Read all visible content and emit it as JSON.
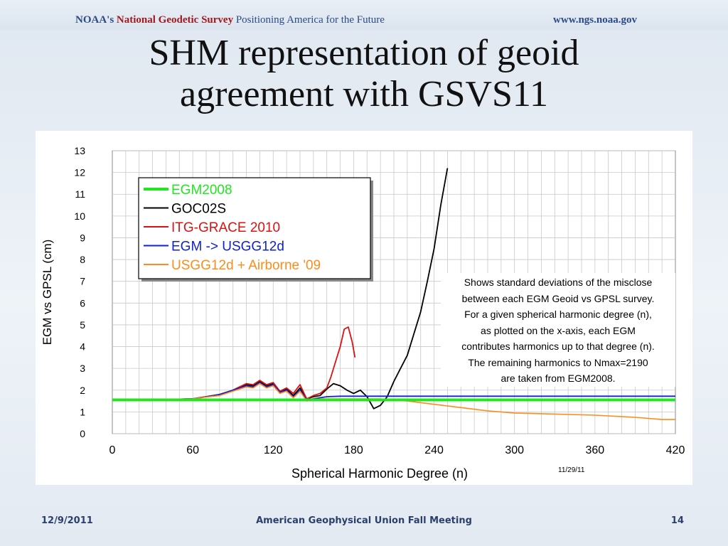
{
  "header": {
    "org_prefix": "NOAA's",
    "org_name": "National Geodetic Survey",
    "tagline": "Positioning America for the Future",
    "url": "www.ngs.noaa.gov"
  },
  "slide": {
    "title_line1": "SHM representation of geoid",
    "title_line2": "agreement with GSVS11"
  },
  "annotation": {
    "lines": [
      "Shows standard deviations of the misclose",
      "between each EGM Geoid vs GPSL survey.",
      "For a given spherical harmonic degree (n),",
      "as plotted on the x-axis, each EGM",
      "contributes harmonics up to that degree (n).",
      "The remaining harmonics to Nmax=2190",
      "are taken from EGM2008."
    ]
  },
  "chart_stamp": "11/29/11",
  "footer": {
    "date": "12/9/2011",
    "center": "American Geophysical Union Fall Meeting",
    "page": "14"
  },
  "chart_data": {
    "type": "line",
    "xlabel": "Spherical Harmonic Degree (n)",
    "ylabel": "EGM vs GPSL (cm)",
    "xlim": [
      0,
      420
    ],
    "ylim": [
      0,
      13
    ],
    "xticks": [
      0,
      60,
      120,
      180,
      240,
      300,
      360,
      420
    ],
    "yticks": [
      0,
      1,
      2,
      3,
      4,
      5,
      6,
      7,
      8,
      9,
      10,
      11,
      12,
      13
    ],
    "grid": true,
    "legend_position": "top-left",
    "series": [
      {
        "name": "EGM2008",
        "color": "#22e622",
        "x": [
          0,
          420
        ],
        "y": [
          1.55,
          1.55
        ]
      },
      {
        "name": "GOC02S",
        "color": "#000000",
        "x": [
          0,
          40,
          60,
          70,
          80,
          90,
          95,
          100,
          105,
          110,
          115,
          120,
          125,
          130,
          135,
          140,
          145,
          150,
          155,
          160,
          165,
          170,
          175,
          180,
          185,
          190,
          195,
          200,
          205,
          210,
          215,
          220,
          225,
          230,
          235,
          240,
          245,
          250
        ],
        "y": [
          1.55,
          1.57,
          1.6,
          1.7,
          1.8,
          2.0,
          2.15,
          2.25,
          2.2,
          2.4,
          2.2,
          2.3,
          1.95,
          2.05,
          1.75,
          2.1,
          1.6,
          1.7,
          1.75,
          2.05,
          2.3,
          2.2,
          2.0,
          1.85,
          2.0,
          1.7,
          1.15,
          1.3,
          1.7,
          2.4,
          3.0,
          3.6,
          4.6,
          5.6,
          7.0,
          8.5,
          10.5,
          12.2
        ]
      },
      {
        "name": "ITG-GRACE 2010",
        "color": "#dd1111",
        "x": [
          0,
          40,
          60,
          70,
          80,
          90,
          95,
          100,
          105,
          110,
          115,
          120,
          125,
          130,
          135,
          140,
          145,
          150,
          155,
          160,
          163,
          166,
          170,
          173,
          176,
          179,
          181
        ],
        "y": [
          1.55,
          1.57,
          1.6,
          1.7,
          1.8,
          2.0,
          2.15,
          2.3,
          2.25,
          2.45,
          2.25,
          2.35,
          1.95,
          2.1,
          1.85,
          2.25,
          1.6,
          1.75,
          1.85,
          2.1,
          2.6,
          3.2,
          4.0,
          4.8,
          4.9,
          4.2,
          3.5
        ]
      },
      {
        "name": "EGM -> USGG12d",
        "color": "#1122cc",
        "x": [
          0,
          40,
          60,
          70,
          80,
          90,
          95,
          100,
          105,
          110,
          115,
          120,
          125,
          130,
          135,
          140,
          145,
          150,
          155,
          160,
          170,
          200,
          420
        ],
        "y": [
          1.55,
          1.57,
          1.6,
          1.7,
          1.8,
          2.0,
          2.1,
          2.2,
          2.15,
          2.35,
          2.15,
          2.25,
          1.9,
          2.0,
          1.7,
          2.0,
          1.55,
          1.6,
          1.65,
          1.7,
          1.72,
          1.72,
          1.72
        ]
      },
      {
        "name": "USGG12d + Airborne '09",
        "color": "#ff8c1a",
        "x": [
          0,
          40,
          60,
          70,
          80,
          90,
          95,
          100,
          105,
          110,
          115,
          120,
          125,
          130,
          135,
          140,
          145,
          150,
          155,
          160,
          170,
          200,
          220,
          240,
          260,
          280,
          300,
          330,
          360,
          390,
          410,
          420
        ],
        "y": [
          1.55,
          1.57,
          1.6,
          1.68,
          1.75,
          1.95,
          2.05,
          2.15,
          2.1,
          2.3,
          2.1,
          2.2,
          1.85,
          1.95,
          1.65,
          1.95,
          1.5,
          1.55,
          1.6,
          1.6,
          1.6,
          1.6,
          1.5,
          1.35,
          1.2,
          1.05,
          0.95,
          0.9,
          0.85,
          0.75,
          0.65,
          0.65
        ]
      }
    ]
  }
}
